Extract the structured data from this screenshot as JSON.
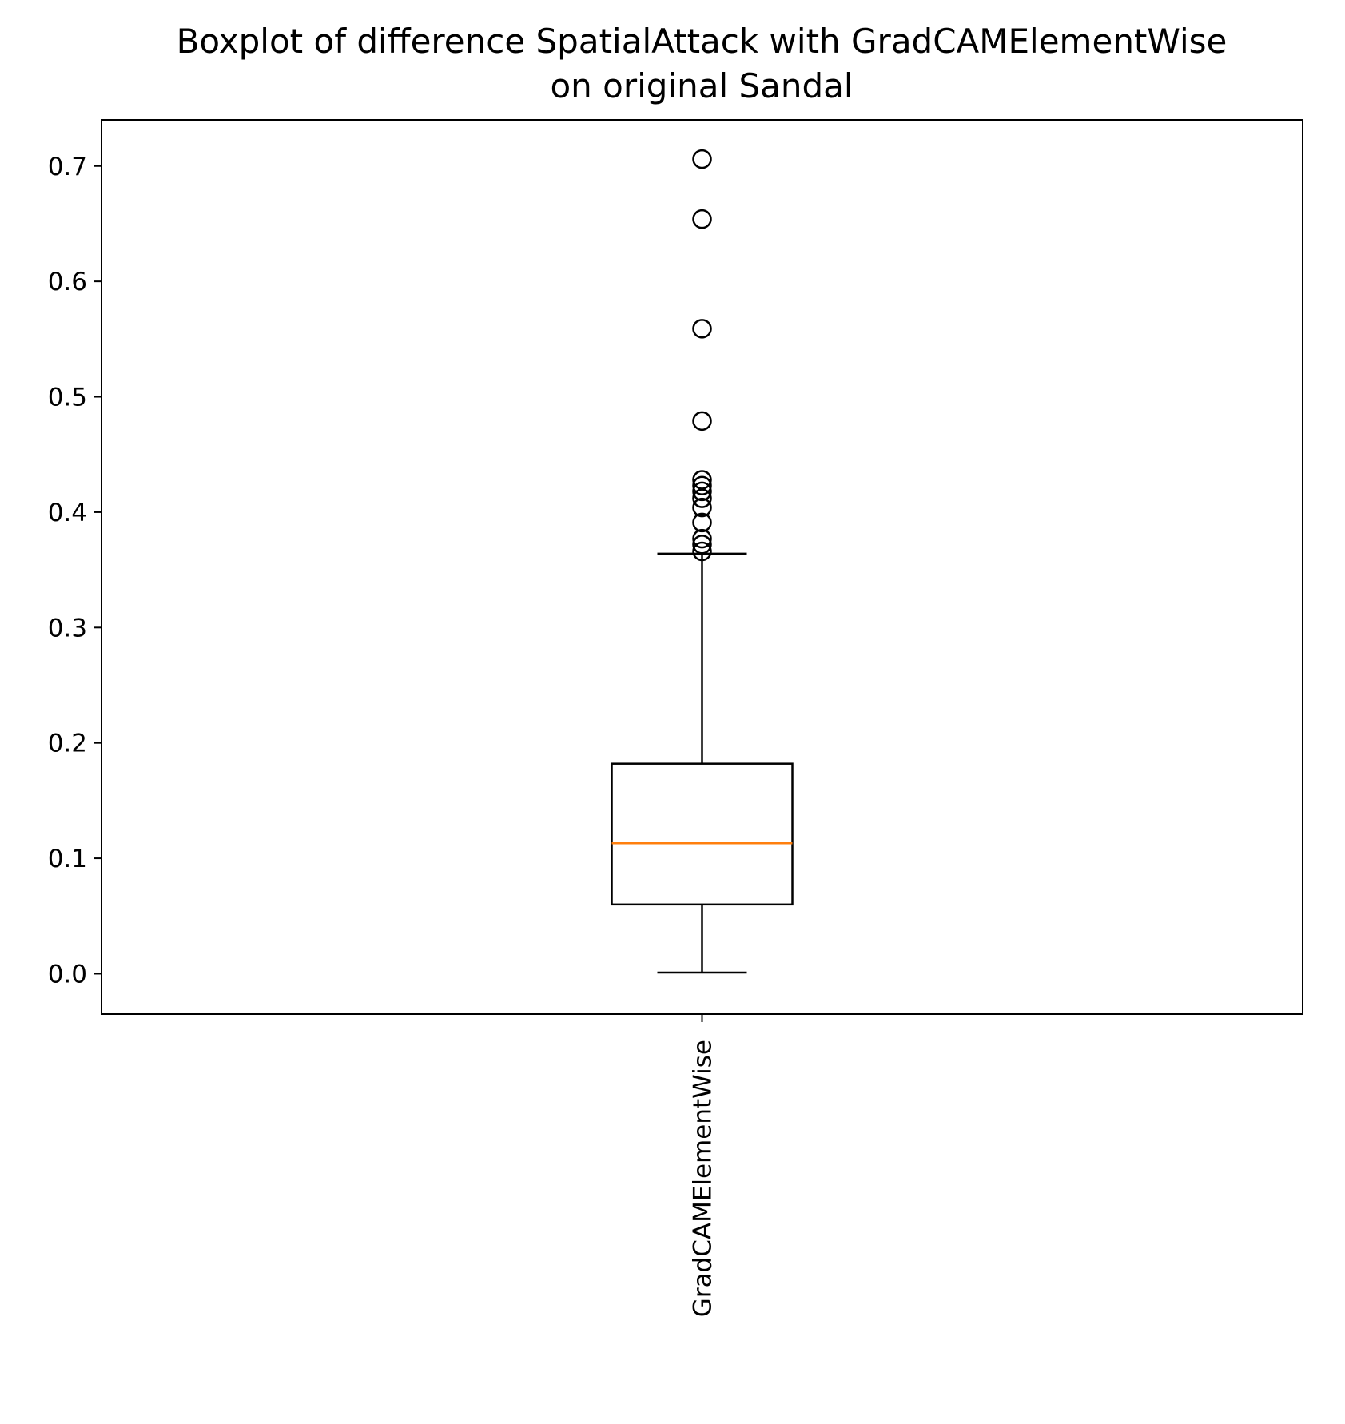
{
  "chart_data": {
    "type": "boxplot",
    "title_lines": [
      "Boxplot of difference SpatialAttack with GradCAMElementWise",
      "on original Sandal"
    ],
    "xlabel": "",
    "ylabel": "",
    "categories": [
      "GradCAMElementWise"
    ],
    "ylim": [
      -0.035,
      0.74
    ],
    "yticks": [
      0.0,
      0.1,
      0.2,
      0.3,
      0.4,
      0.5,
      0.6,
      0.7
    ],
    "ytick_labels": [
      "0.0",
      "0.1",
      "0.2",
      "0.3",
      "0.4",
      "0.5",
      "0.6",
      "0.7"
    ],
    "grid": false,
    "legend": "none",
    "boxes": [
      {
        "category": "GradCAMElementWise",
        "whisker_low": 0.001,
        "q1": 0.06,
        "median": 0.113,
        "q3": 0.182,
        "whisker_high": 0.364,
        "outliers": [
          0.366,
          0.372,
          0.377,
          0.391,
          0.404,
          0.412,
          0.418,
          0.423,
          0.428,
          0.479,
          0.559,
          0.654,
          0.706
        ]
      }
    ],
    "colors": {
      "box": "#000000",
      "median": "#ff7f0e",
      "whisker": "#000000",
      "outlier_edge": "#000000",
      "axes": "#000000",
      "background": "#ffffff"
    }
  }
}
